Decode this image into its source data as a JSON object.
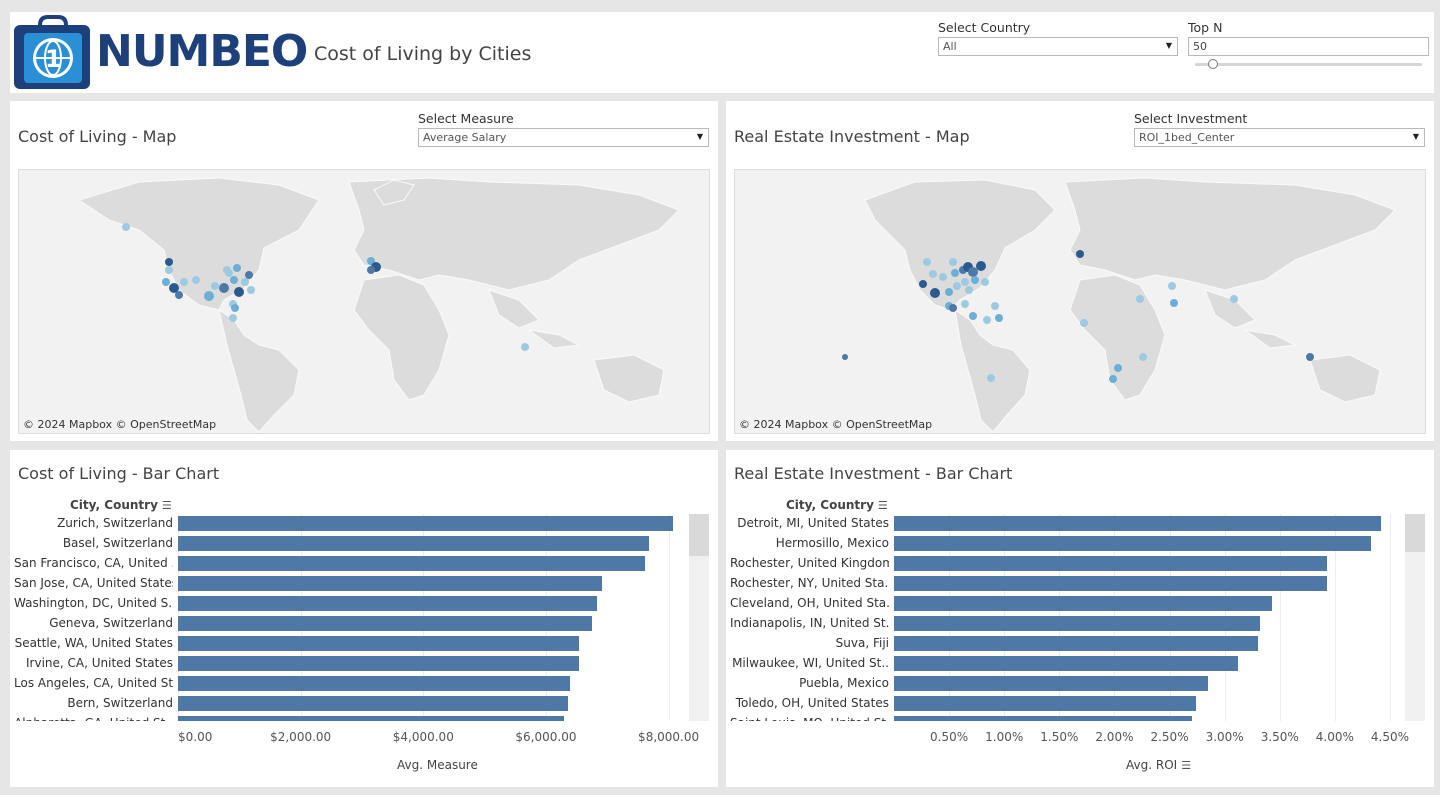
{
  "header": {
    "logo_text": "NUMBEO",
    "title": "Cost of Living by Cities",
    "country_label": "Select Country",
    "country_value": "All",
    "topn_label": "Top N",
    "topn_value": "50",
    "topn_slider_level": 0.08
  },
  "col_map": {
    "title": "Cost of Living - Map",
    "measure_label": "Select Measure",
    "measure_value": "Average Salary",
    "attribution": "© 2024 Mapbox  © OpenStreetMap"
  },
  "re_map": {
    "title": "Real Estate Investment - Map",
    "investment_label": "Select Investment",
    "investment_value": "ROI_1bed_Center",
    "attribution": "© 2024 Mapbox  © OpenStreetMap"
  },
  "colors": {
    "bar": "#4e79a7",
    "point_light": "#9ecae1",
    "point_mid": "#6baed6",
    "point_dark": "#2c5a8c",
    "logo_blue": "#1d3f7a"
  },
  "col_bar": {
    "title": "Cost of Living - Bar Chart",
    "col_header": "City, Country",
    "axis_title": "Avg. Measure"
  },
  "re_bar": {
    "title": "Real Estate Investment - Bar Chart",
    "col_header": "City, Country",
    "axis_title": "Avg. ROI"
  },
  "chart_data": [
    {
      "type": "bar",
      "orientation": "horizontal",
      "title": "Cost of Living - Bar Chart",
      "xlabel": "Avg. Measure",
      "ylabel": "City, Country",
      "xlim": [
        0,
        8300
      ],
      "ticks": [
        "$0.00",
        "$2,000.00",
        "$4,000.00",
        "$6,000.00",
        "$8,000.00"
      ],
      "tick_values": [
        0,
        2000,
        4000,
        6000,
        8000
      ],
      "categories": [
        "Zurich, Switzerland",
        "Basel, Switzerland",
        "San Francisco, CA, United ..",
        "San Jose, CA, United States",
        "Washington, DC, United S..",
        "Geneva, Switzerland",
        "Seattle, WA, United States",
        "Irvine, CA, United States",
        "Los Angeles, CA, United St..",
        "Bern, Switzerland",
        "Alpharetta, GA, United St.."
      ],
      "values": [
        8070,
        7680,
        7620,
        6910,
        6830,
        6750,
        6540,
        6540,
        6390,
        6360,
        6300
      ]
    },
    {
      "type": "bar",
      "orientation": "horizontal",
      "title": "Real Estate Investment - Bar Chart",
      "xlabel": "Avg. ROI",
      "ylabel": "City, Country",
      "xlim": [
        0,
        4.6
      ],
      "ticks": [
        "0.50%",
        "1.00%",
        "1.50%",
        "2.00%",
        "2.50%",
        "3.00%",
        "3.50%",
        "4.00%",
        "4.50%"
      ],
      "tick_values": [
        0.5,
        1.0,
        1.5,
        2.0,
        2.5,
        3.0,
        3.5,
        4.0,
        4.5
      ],
      "categories": [
        "Detroit, MI, United States",
        "Hermosillo, Mexico",
        "Rochester, United Kingdom",
        "Rochester, NY, United Sta..",
        "Cleveland, OH, United Sta..",
        "Indianapolis, IN, United St..",
        "Suva, Fiji",
        "Milwaukee, WI, United St..",
        "Puebla, Mexico",
        "Toledo, OH, United States",
        "Saint Louis, MO, United St.."
      ],
      "values": [
        4.42,
        4.33,
        3.93,
        3.93,
        3.43,
        3.32,
        3.3,
        3.12,
        2.85,
        2.74,
        2.7
      ]
    }
  ]
}
